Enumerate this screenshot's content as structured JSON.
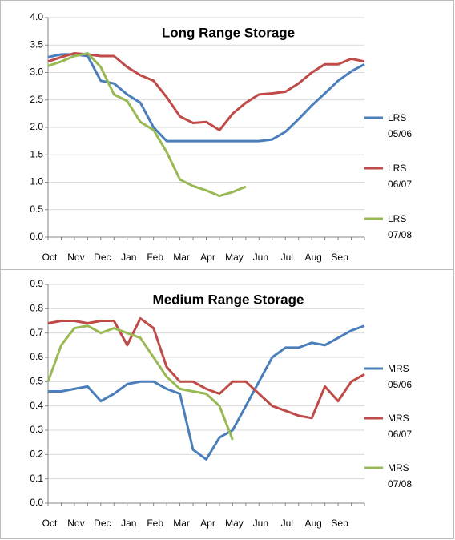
{
  "chart_data": [
    {
      "type": "line",
      "title": "Long Range Storage",
      "categories": [
        "Oct",
        null,
        "Nov",
        null,
        "Dec",
        null,
        "Jan",
        null,
        "Feb",
        null,
        "Mar",
        null,
        "Apr",
        null,
        "May",
        null,
        "Jun",
        null,
        "Jul",
        null,
        "Aug",
        null,
        "Sep",
        null,
        null
      ],
      "ylim": [
        0,
        4
      ],
      "yticks": [
        {
          "value": 0,
          "label": "0.0"
        },
        0.5,
        {
          "value": 1,
          "label": "1.0"
        },
        1.5,
        {
          "value": 2,
          "label": "2.0"
        },
        2.5,
        {
          "value": 3,
          "label": "3.0"
        },
        3.5,
        {
          "value": 4,
          "label": "4.0"
        }
      ],
      "grid": true,
      "legend": "right",
      "series": [
        {
          "name": "LRS 05/06",
          "color": "#4a7ebb",
          "values": [
            3.28,
            3.33,
            3.33,
            3.3,
            2.85,
            2.8,
            2.6,
            2.45,
            2.0,
            1.75,
            1.75,
            1.75,
            1.75,
            1.75,
            1.75,
            1.75,
            1.75,
            1.78,
            1.92,
            2.15,
            2.4,
            2.62,
            2.85,
            3.02,
            3.15
          ]
        },
        {
          "name": "LRS 06/07",
          "color": "#be4b48",
          "values": [
            3.2,
            3.28,
            3.35,
            3.33,
            3.3,
            3.3,
            3.1,
            2.95,
            2.85,
            2.55,
            2.2,
            2.08,
            2.1,
            1.95,
            2.25,
            2.45,
            2.6,
            2.62,
            2.65,
            2.8,
            3.0,
            3.15,
            3.15,
            3.25,
            3.2
          ]
        },
        {
          "name": "LRS 07/08",
          "color": "#98b954",
          "values": [
            3.12,
            3.2,
            3.3,
            3.35,
            3.1,
            2.6,
            2.48,
            2.1,
            1.95,
            1.55,
            1.05,
            0.93,
            0.85,
            0.75,
            0.82,
            0.92,
            null,
            null,
            null,
            null,
            null,
            null,
            null,
            null,
            null
          ]
        }
      ]
    },
    {
      "type": "line",
      "title": "Medium Range Storage",
      "categories": [
        "Oct",
        null,
        "Nov",
        null,
        "Dec",
        null,
        "Jan",
        null,
        "Feb",
        null,
        "Mar",
        null,
        "Apr",
        null,
        "May",
        null,
        "Jun",
        null,
        "Jul",
        null,
        "Aug",
        null,
        "Sep",
        null,
        null
      ],
      "ylim": [
        0,
        0.9
      ],
      "yticks": [
        {
          "value": 0,
          "label": "0.0"
        },
        0.1,
        0.2,
        0.3,
        0.4,
        0.5,
        0.6,
        0.7,
        0.8,
        0.9
      ],
      "grid": true,
      "legend": "right",
      "series": [
        {
          "name": "MRS 05/06",
          "color": "#4a7ebb",
          "values": [
            0.46,
            0.46,
            0.47,
            0.48,
            0.42,
            0.45,
            0.49,
            0.5,
            0.5,
            0.47,
            0.45,
            0.22,
            0.18,
            0.27,
            0.3,
            0.4,
            0.5,
            0.6,
            0.64,
            0.64,
            0.66,
            0.65,
            0.68,
            0.71,
            0.73
          ]
        },
        {
          "name": "MRS 06/07",
          "color": "#be4b48",
          "values": [
            0.74,
            0.75,
            0.75,
            0.74,
            0.75,
            0.75,
            0.65,
            0.76,
            0.72,
            0.56,
            0.5,
            0.5,
            0.47,
            0.45,
            0.5,
            0.5,
            0.45,
            0.4,
            0.38,
            0.36,
            0.35,
            0.48,
            0.42,
            0.5,
            0.53
          ]
        },
        {
          "name": "MRS 07/08",
          "color": "#98b954",
          "values": [
            0.5,
            0.65,
            0.72,
            0.73,
            0.7,
            0.72,
            0.7,
            0.68,
            0.6,
            0.52,
            0.47,
            0.46,
            0.45,
            0.4,
            0.26,
            null,
            null,
            null,
            null,
            null,
            null,
            null,
            null,
            null,
            null
          ]
        }
      ]
    }
  ]
}
